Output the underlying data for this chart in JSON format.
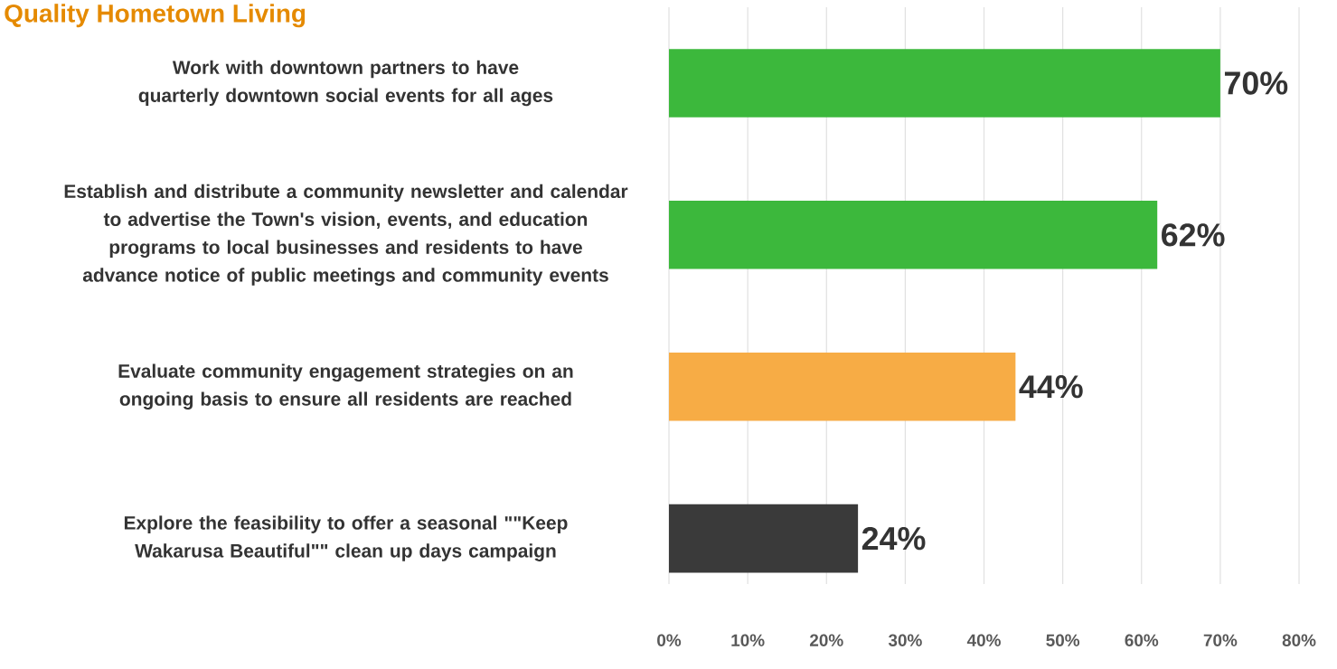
{
  "chart_data": {
    "type": "bar",
    "orientation": "horizontal",
    "title": "Quality Hometown Living",
    "categories": [
      "Work with downtown partners to have quarterly downtown social events for all ages",
      "Establish and distribute a community newsletter and calendar to advertise the Town's vision, events, and education programs to local businesses and residents to have advance notice of public meetings and community events",
      "Evaluate community engagement strategies on an ongoing basis to ensure all residents are reached",
      "Explore the feasibility to offer a seasonal \"\"Keep Wakarusa Beautiful\"\" clean up days campaign"
    ],
    "values": [
      70,
      62,
      44,
      24
    ],
    "colors": [
      "#3cb83c",
      "#3cb83c",
      "#f7ac45",
      "#3a3a3a"
    ],
    "value_labels": [
      "70%",
      "62%",
      "44%",
      "24%"
    ],
    "xlim": [
      0,
      80
    ],
    "xticks": [
      {
        "value": 0,
        "label": "0%"
      },
      {
        "value": 10,
        "label": "10%"
      },
      {
        "value": 20,
        "label": "20%"
      },
      {
        "value": 30,
        "label": "30%"
      },
      {
        "value": 40,
        "label": "40%"
      },
      {
        "value": 50,
        "label": "50%"
      },
      {
        "value": 60,
        "label": "60%"
      },
      {
        "value": 70,
        "label": "70%"
      },
      {
        "value": 80,
        "label": "80%"
      }
    ],
    "grid": "x"
  }
}
